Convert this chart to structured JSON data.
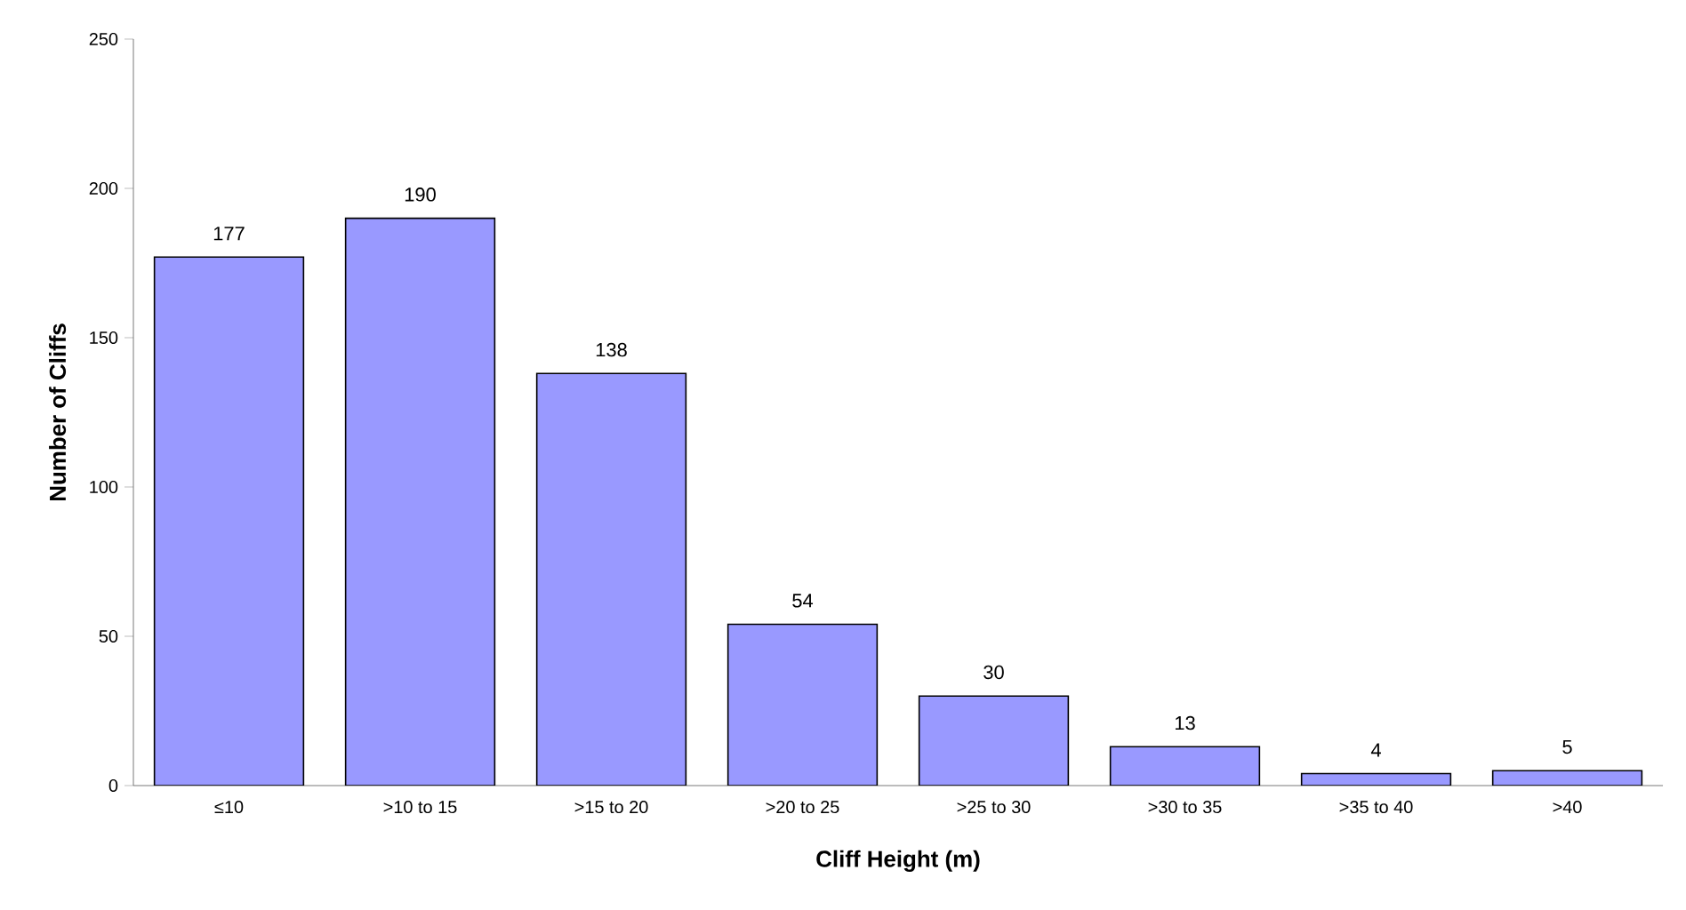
{
  "chart_data": {
    "type": "bar",
    "xlabel": "Cliff Height (m)",
    "ylabel": "Number of Cliffs",
    "categories": [
      "≤10",
      ">10 to 15",
      ">15 to 20",
      ">20 to 25",
      ">25 to 30",
      ">30 to 35",
      ">35 to 40",
      ">40"
    ],
    "values": [
      177,
      190,
      138,
      54,
      30,
      13,
      4,
      5
    ],
    "color": "#9999ff",
    "ylim": [
      0,
      250
    ],
    "yticks": [
      0,
      50,
      100,
      150,
      200,
      250
    ],
    "data_labels": true,
    "grid": false
  }
}
